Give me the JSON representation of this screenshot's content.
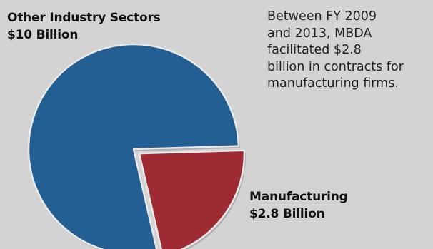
{
  "chart_data": {
    "type": "pie",
    "slices": [
      {
        "category": "Other Industry Sectors",
        "value": 10,
        "value_label": "$10 Billion",
        "color": "#245f94"
      },
      {
        "category": "Manufacturing",
        "value": 2.8,
        "value_label": "$2.8 Billion",
        "color": "#9e2a33",
        "exploded": true
      }
    ],
    "unit": "Billion USD",
    "annotation_lines": [
      "Between FY 2009",
      "and 2013, MBDA",
      "facilitated $2.8",
      "billion in contracts for",
      "manufacturing firms."
    ]
  }
}
